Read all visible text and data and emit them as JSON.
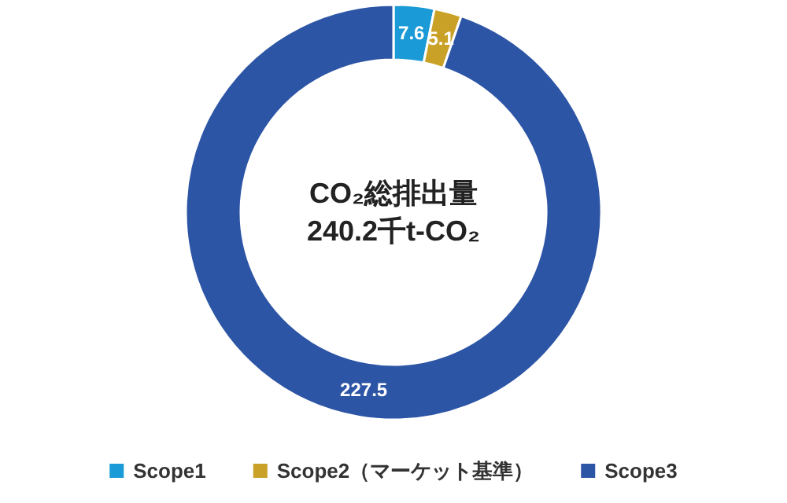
{
  "chart_data": {
    "type": "donut",
    "categories": [
      "Scope1",
      "Scope2（マーケット基準）",
      "Scope3"
    ],
    "values": [
      7.6,
      5.1,
      227.5
    ],
    "colors": [
      "#1a9ad6",
      "#c9a126",
      "#2d55a5"
    ],
    "data_labels": true,
    "legend": "bottom",
    "annotations": [
      "CO₂総排出量",
      "240.2千t-CO₂"
    ]
  }
}
